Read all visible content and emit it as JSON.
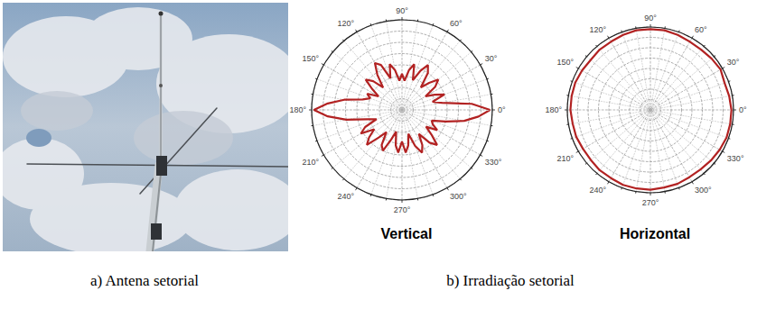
{
  "captions": [
    "a) Antena setorial",
    "b) Irradiação setorial"
  ],
  "chart_data": [
    {
      "type": "polar",
      "title": "Vertical",
      "color": "#b22222",
      "grid": true,
      "tick_labels": "x",
      "xlim": [
        0,
        360
      ],
      "xticks": [
        {
          "value": 0,
          "label": "0°"
        },
        {
          "value": 30,
          "label": "30°"
        },
        {
          "value": 60,
          "label": "60°"
        },
        {
          "value": 90,
          "label": "90°"
        },
        {
          "value": 120,
          "label": "120°"
        },
        {
          "value": 150,
          "label": "150°"
        },
        {
          "value": 180,
          "label": "180°"
        },
        {
          "value": 210,
          "label": "210°"
        },
        {
          "value": 240,
          "label": "240°"
        },
        {
          "value": 270,
          "label": "270°"
        },
        {
          "value": 300,
          "label": "300°"
        },
        {
          "value": 330,
          "label": "330°"
        }
      ],
      "ylim": [
        -40,
        0
      ],
      "yticks": [
        -40,
        -35,
        -30,
        -25,
        -20,
        -15,
        -10,
        -5,
        0
      ],
      "x": [
        0,
        5,
        10,
        15,
        20,
        25,
        30,
        35,
        40,
        45,
        50,
        55,
        60,
        65,
        70,
        75,
        80,
        85,
        90,
        95,
        100,
        105,
        110,
        115,
        120,
        125,
        130,
        135,
        140,
        145,
        150,
        155,
        160,
        165,
        170,
        175,
        180,
        185,
        190,
        195,
        200,
        205,
        210,
        215,
        220,
        225,
        230,
        235,
        240,
        245,
        250,
        255,
        260,
        265,
        270,
        275,
        280,
        285,
        290,
        295,
        300,
        305,
        310,
        315,
        320,
        325,
        330,
        335,
        340,
        345,
        350,
        355,
        360
      ],
      "values": [
        -1,
        -9,
        -22,
        -26,
        -20,
        -24,
        -28,
        -22,
        -19,
        -23,
        -27,
        -20,
        -17,
        -21,
        -26,
        -19,
        -22,
        -27,
        -24,
        -27,
        -22,
        -19,
        -25,
        -18,
        -16,
        -21,
        -27,
        -22,
        -19,
        -24,
        -28,
        -23,
        -25,
        -22,
        -14,
        -7,
        -1,
        -7,
        -15,
        -24,
        -28,
        -22,
        -19,
        -25,
        -21,
        -18,
        -24,
        -28,
        -22,
        -20,
        -26,
        -30,
        -24,
        -21,
        -26,
        -21,
        -24,
        -29,
        -23,
        -19,
        -22,
        -27,
        -21,
        -18,
        -23,
        -27,
        -22,
        -25,
        -26,
        -20,
        -12,
        -6,
        -1
      ]
    },
    {
      "type": "polar",
      "title": "Horizontal",
      "color": "#b22222",
      "grid": true,
      "tick_labels": "x",
      "xlim": [
        0,
        360
      ],
      "xticks": [
        {
          "value": 0,
          "label": "0°"
        },
        {
          "value": 30,
          "label": "30°"
        },
        {
          "value": 60,
          "label": "60°"
        },
        {
          "value": 90,
          "label": "90°"
        },
        {
          "value": 120,
          "label": "120°"
        },
        {
          "value": 150,
          "label": "150°"
        },
        {
          "value": 180,
          "label": "180°"
        },
        {
          "value": 210,
          "label": "210°"
        },
        {
          "value": 240,
          "label": "240°"
        },
        {
          "value": 270,
          "label": "270°"
        },
        {
          "value": 300,
          "label": "300°"
        },
        {
          "value": 330,
          "label": "330°"
        }
      ],
      "ylim": [
        -40,
        0
      ],
      "yticks": [
        -40,
        -35,
        -30,
        -25,
        -20,
        -15,
        -10,
        -5,
        0
      ],
      "x": [
        0,
        10,
        20,
        30,
        40,
        50,
        60,
        70,
        80,
        90,
        100,
        110,
        120,
        130,
        140,
        150,
        160,
        170,
        180,
        190,
        200,
        210,
        220,
        230,
        240,
        250,
        260,
        270,
        280,
        290,
        300,
        310,
        320,
        330,
        340,
        350,
        360
      ],
      "values": [
        -1,
        -1.5,
        -2,
        -1,
        -1.5,
        -2,
        -2,
        -1.5,
        -1,
        -1,
        -1,
        -1.5,
        -2,
        -2,
        -2.5,
        -2,
        -1.5,
        -1.5,
        -1.5,
        -2,
        -2,
        -2.5,
        -2.5,
        -2,
        -2,
        -1.5,
        -1.5,
        -1.5,
        -2,
        -2,
        -2.5,
        -2.5,
        -2,
        -1.5,
        -1,
        -1,
        -1
      ]
    }
  ]
}
